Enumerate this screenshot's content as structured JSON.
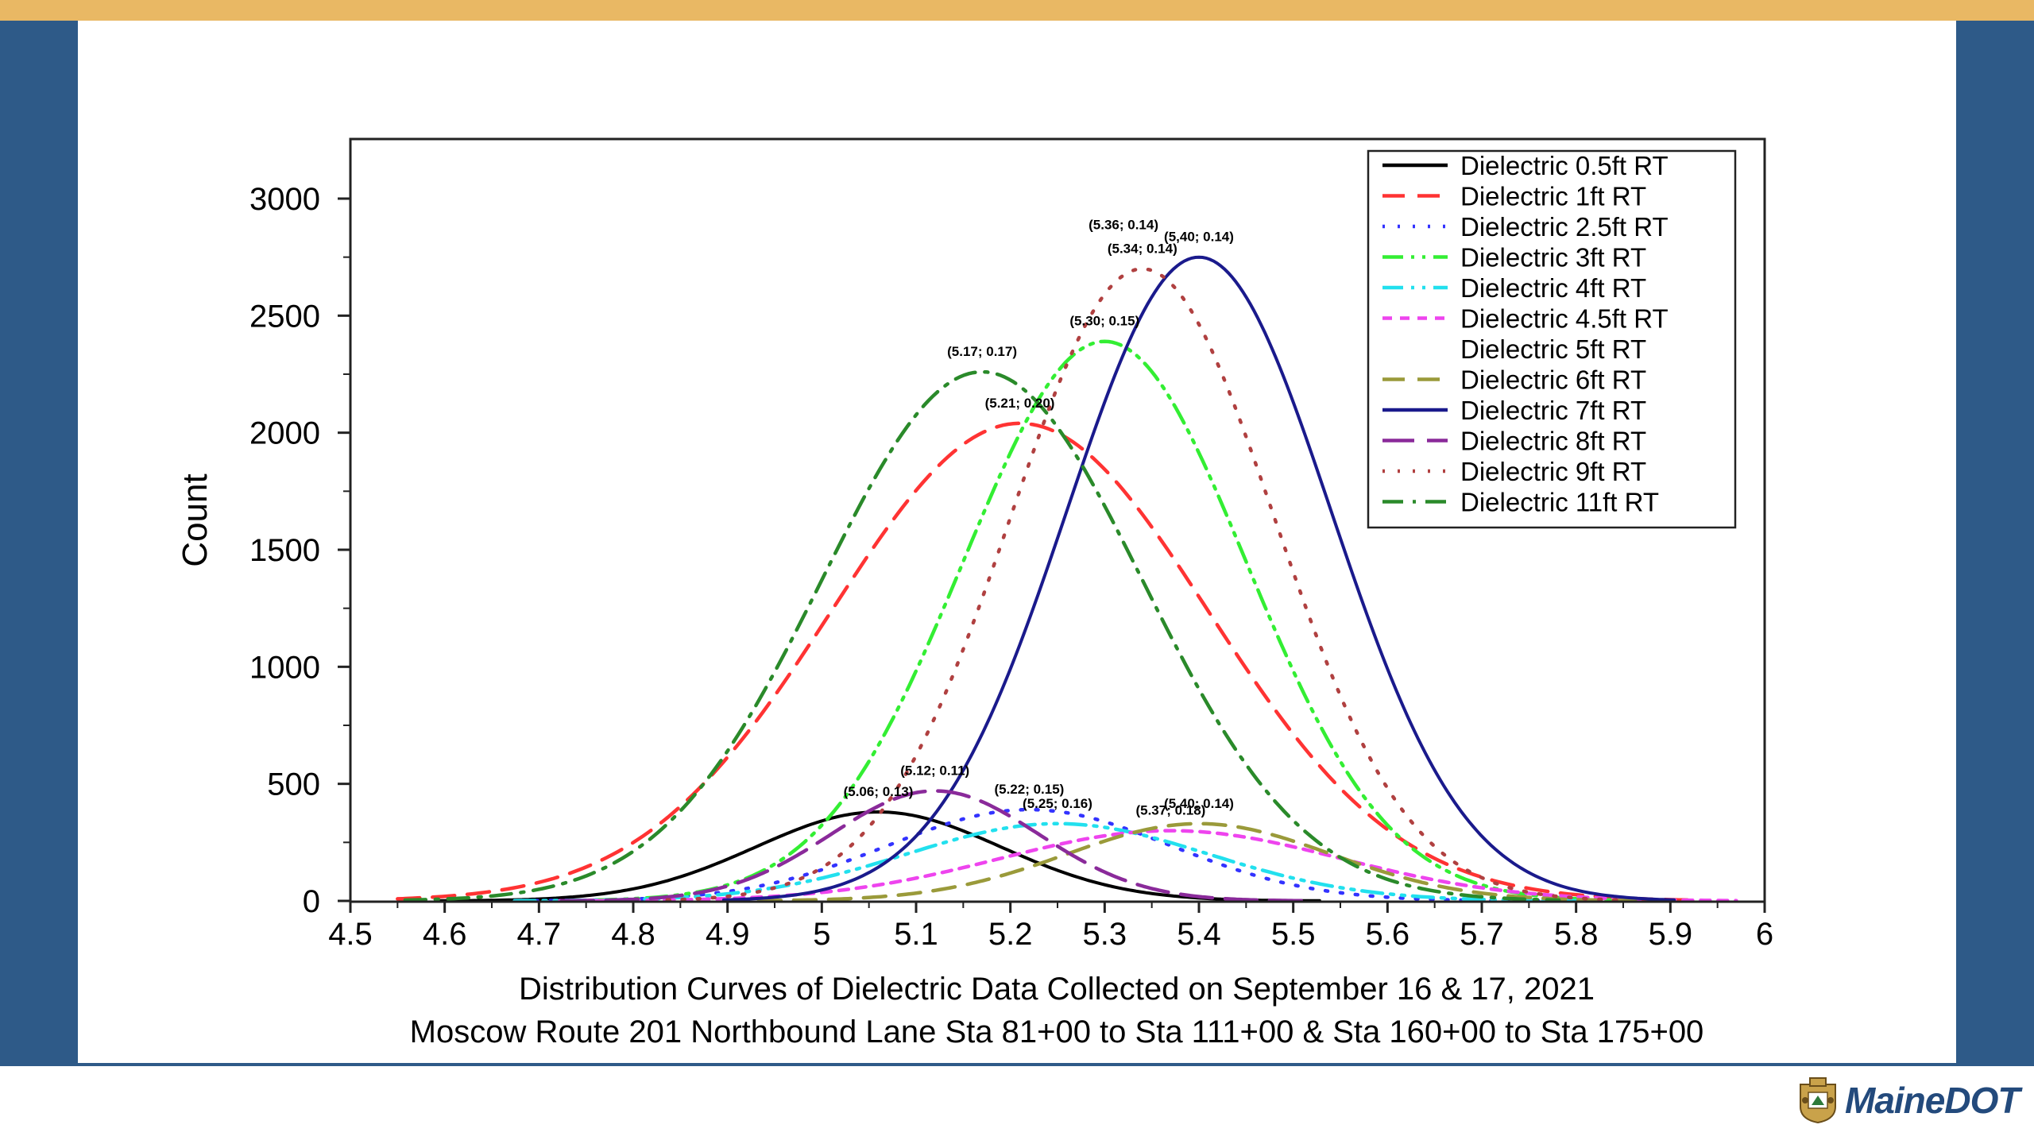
{
  "logo": {
    "text": "MaineDOT"
  },
  "chart_data": {
    "type": "line",
    "title": "Distribution Curves of Dielectric Data Collected on September 16 & 17, 2021",
    "subtitle": "Moscow Route 201 Northbound Lane Sta 81+00 to Sta 111+00 & Sta 160+00 to Sta 175+00",
    "xlabel": "",
    "ylabel": "Count",
    "xlim": [
      4.5,
      6
    ],
    "ylim": [
      0,
      3000
    ],
    "x_ticks": [
      "4.5",
      "4.6",
      "4.7",
      "4.8",
      "4.9",
      "5",
      "5.1",
      "5.2",
      "5.3",
      "5.4",
      "5.5",
      "5.6",
      "5.7",
      "5.8",
      "5.9",
      "6"
    ],
    "y_ticks": [
      "0",
      "500",
      "1000",
      "1500",
      "2000",
      "2500",
      "3000"
    ],
    "legend_position": "top-right",
    "series": [
      {
        "name": "Dielectric 0.5ft RT",
        "color": "#000000",
        "dash": "solid",
        "mean": 5.06,
        "sd": 0.13,
        "peak": 380,
        "label": "(5.06; 0.13)"
      },
      {
        "name": "Dielectric 1ft RT",
        "color": "#ff3333",
        "dash": "dash",
        "mean": 5.21,
        "sd": 0.2,
        "peak": 2040,
        "label": "(5.21; 0.20)"
      },
      {
        "name": "Dielectric 2.5ft RT",
        "color": "#3333ff",
        "dash": "dot",
        "mean": 5.22,
        "sd": 0.15,
        "peak": 390,
        "label": "(5.22; 0.15)"
      },
      {
        "name": "Dielectric 3ft RT",
        "color": "#33ee33",
        "dash": "dashdotdot",
        "mean": 5.3,
        "sd": 0.15,
        "peak": 2390,
        "label": "(5.30; 0.15)"
      },
      {
        "name": "Dielectric 4ft RT",
        "color": "#22e0ee",
        "dash": "dashdotdot",
        "mean": 5.25,
        "sd": 0.16,
        "peak": 330,
        "label": "(5.25; 0.16)"
      },
      {
        "name": "Dielectric 4.5ft RT",
        "color": "#ee44ee",
        "dash": "shortdash",
        "mean": 5.37,
        "sd": 0.18,
        "peak": 300,
        "label": "(5.37; 0.18)"
      },
      {
        "name": "Dielectric 5ft RT",
        "color": "#ffffff",
        "dash": "solid",
        "mean": 5.3,
        "sd": 0.15,
        "peak": 0,
        "label": ""
      },
      {
        "name": "Dielectric 6ft RT",
        "color": "#9a9a3a",
        "dash": "dash",
        "mean": 5.4,
        "sd": 0.14,
        "peak": 330,
        "label": "(5.40; 0.14)"
      },
      {
        "name": "Dielectric 7ft RT",
        "color": "#1a1a8c",
        "dash": "solid",
        "mean": 5.4,
        "sd": 0.14,
        "peak": 2750,
        "label": "(5,40; 0.14)"
      },
      {
        "name": "Dielectric 8ft RT",
        "color": "#8a2a9a",
        "dash": "longdash",
        "mean": 5.12,
        "sd": 0.11,
        "peak": 470,
        "label": "(5.12; 0.11)"
      },
      {
        "name": "Dielectric 9ft RT",
        "color": "#b04040",
        "dash": "dot",
        "mean": 5.34,
        "sd": 0.14,
        "peak": 2700,
        "label": "(5.34; 0.14)"
      },
      {
        "name": "Dielectric 11ft RT",
        "color": "#2a8a2a",
        "dash": "dashdot",
        "mean": 5.17,
        "sd": 0.17,
        "peak": 2260,
        "label": "(5.17; 0.17)"
      }
    ],
    "extra_annotations": [
      {
        "text": "(5.36; 0.14)",
        "x": 5.32,
        "y": 2870
      }
    ]
  }
}
